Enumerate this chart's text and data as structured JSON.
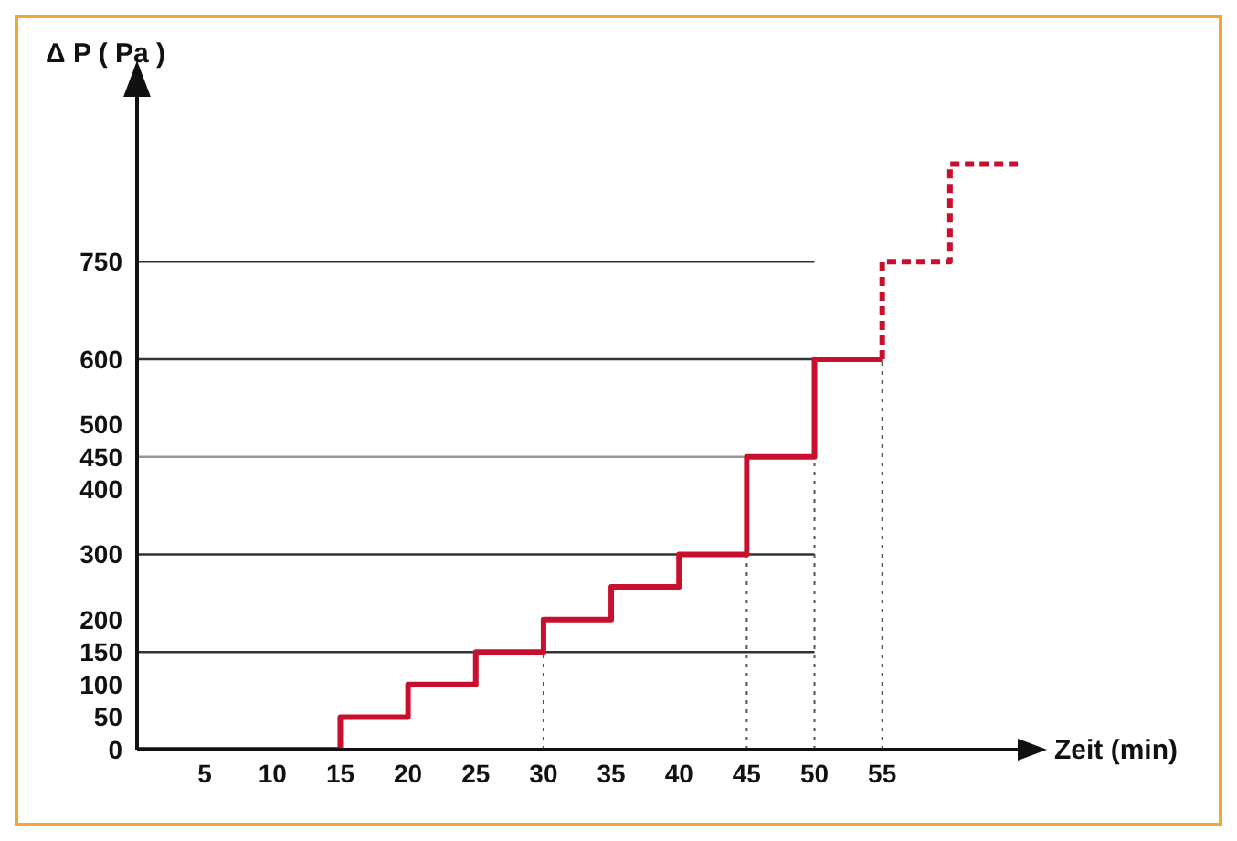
{
  "chart_data": {
    "type": "step",
    "xlabel": "Zeit  (min)",
    "ylabel": "Δ P  ( Pa )",
    "xlim": [
      0,
      65
    ],
    "xticks": [
      5,
      10,
      15,
      20,
      25,
      30,
      35,
      40,
      45,
      50,
      55
    ],
    "ylim": [
      0,
      950
    ],
    "yticks": [
      0,
      50,
      100,
      150,
      200,
      300,
      400,
      450,
      500,
      600,
      750
    ],
    "series": [
      {
        "color": "#c8102e",
        "line_style": "solid",
        "x": [
          0,
          15,
          20,
          25,
          30,
          35,
          40,
          45,
          50,
          55
        ],
        "values": [
          0,
          50,
          100,
          150,
          200,
          250,
          300,
          450,
          600,
          600
        ]
      },
      {
        "color": "#c8102e",
        "line_style": "dashed",
        "x": [
          55,
          55,
          60,
          65
        ],
        "values": [
          600,
          750,
          900,
          900
        ]
      }
    ],
    "ref_lines": [
      {
        "axis": "y",
        "value": 150,
        "color": "#333333",
        "line_style": "solid"
      },
      {
        "axis": "y",
        "value": 300,
        "color": "#333333",
        "line_style": "solid"
      },
      {
        "axis": "y",
        "value": 450,
        "color": "#999999",
        "line_style": "solid"
      },
      {
        "axis": "y",
        "value": 600,
        "color": "#333333",
        "line_style": "solid"
      },
      {
        "axis": "y",
        "value": 750,
        "color": "#333333",
        "line_style": "solid"
      },
      {
        "axis": "x",
        "value": 30,
        "color": "#555555",
        "line_style": "dotted"
      },
      {
        "axis": "x",
        "value": 45,
        "color": "#555555",
        "line_style": "dotted"
      },
      {
        "axis": "x",
        "value": 50,
        "color": "#555555",
        "line_style": "dotted"
      },
      {
        "axis": "x",
        "value": 55,
        "color": "#555555",
        "line_style": "dotted"
      }
    ],
    "grid": false,
    "legend": false
  }
}
